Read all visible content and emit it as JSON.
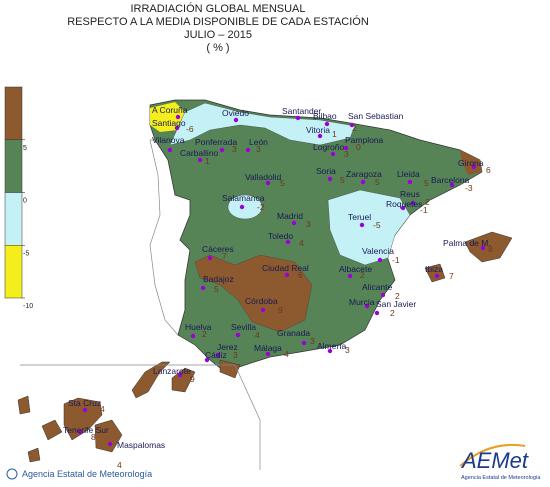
{
  "title_lines": [
    "IRRADIACIÓN GLOBAL MENSUAL",
    "RESPECTO A LA MEDIA DISPONIBLE DE CADA ESTACIÓN",
    "JULIO – 2015",
    "( % )"
  ],
  "scale": {
    "lim": [
      -10,
      10
    ],
    "ticks": [
      5,
      0,
      -5,
      -10
    ],
    "bands": [
      {
        "from": 5,
        "to": 10,
        "color": "#8c5a2e"
      },
      {
        "from": 0,
        "to": 5,
        "color": "#568456"
      },
      {
        "from": -5,
        "to": 0,
        "color": "#c4f1f5"
      },
      {
        "from": -10,
        "to": -5,
        "color": "#f3ee1c"
      }
    ]
  },
  "stations": [
    {
      "name": "A Coruña"
    },
    {
      "name": "Santiago",
      "value": -6
    },
    {
      "name": "Vilanova"
    },
    {
      "name": "Ponferrada",
      "value": 3
    },
    {
      "name": "León",
      "value": 3
    },
    {
      "name": "Carballino",
      "value": 1
    },
    {
      "name": "Oviedo"
    },
    {
      "name": "Santander"
    },
    {
      "name": "Bilbao"
    },
    {
      "name": "San Sebastian",
      "value": 2
    },
    {
      "name": "Vitoria",
      "value": 1
    },
    {
      "name": "Logroño",
      "value": 3
    },
    {
      "name": "Pamplona",
      "value": 0
    },
    {
      "name": "Valladolid",
      "value": 5
    },
    {
      "name": "Soria",
      "value": 5
    },
    {
      "name": "Zaragoza",
      "value": 5
    },
    {
      "name": "Lleida",
      "value": 5
    },
    {
      "name": "Girona",
      "value": 6
    },
    {
      "name": "Barcelona",
      "value": -3
    },
    {
      "name": "Reus",
      "value": 2
    },
    {
      "name": "Roquetes",
      "value": -1
    },
    {
      "name": "Salamanca",
      "value": -2
    },
    {
      "name": "Madrid",
      "value": 3
    },
    {
      "name": "Teruel",
      "value": -5
    },
    {
      "name": "Toledo",
      "value": 4
    },
    {
      "name": "Valencia",
      "value": -1
    },
    {
      "name": "Palma de M.",
      "value": 8
    },
    {
      "name": "Ibiza",
      "value": 7
    },
    {
      "name": "Cáceres",
      "value": 7
    },
    {
      "name": "Ciudad Real",
      "value": 6
    },
    {
      "name": "Albacete",
      "value": 2
    },
    {
      "name": "Badajoz",
      "value": 5
    },
    {
      "name": "Alicante",
      "value": 2
    },
    {
      "name": "Murcia",
      "value": 5
    },
    {
      "name": "San Javier",
      "value": 2
    },
    {
      "name": "Córdoba",
      "value": 9
    },
    {
      "name": "Huelva",
      "value": 2
    },
    {
      "name": "Sevilla",
      "value": 4
    },
    {
      "name": "Granada",
      "value": 3
    },
    {
      "name": "Jerez",
      "value": 3
    },
    {
      "name": "Cádiz"
    },
    {
      "name": "Málaga",
      "value": 4
    },
    {
      "name": "Almería",
      "value": 3
    },
    {
      "name": "Lanzarote",
      "value": 9
    },
    {
      "name": "Sta Cruz",
      "value": 4
    },
    {
      "name": "Tenerife Sur",
      "value": 8
    },
    {
      "name": "Maspalomas",
      "value": 4
    }
  ],
  "footer": "Agencia Estatal de Meteorología",
  "logo": {
    "mark": "AEMet",
    "caption": "Agencia Estatal de Meteorología"
  }
}
